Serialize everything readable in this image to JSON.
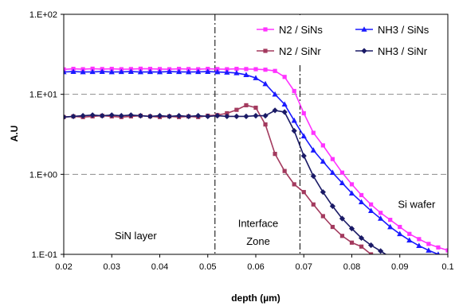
{
  "chart_data": {
    "type": "line",
    "title": "",
    "xlabel": "depth (µm)",
    "ylabel": "A.U",
    "yscale": "log",
    "xlim": [
      0.02,
      0.1
    ],
    "ylim": [
      0.1,
      100
    ],
    "x_ticks": [
      0.02,
      0.03,
      0.04,
      0.05,
      0.06,
      0.07,
      0.08,
      0.09,
      0.1
    ],
    "x_tick_labels": [
      "0.02",
      "0.03",
      "0.04",
      "0.05",
      "0.06",
      "0.07",
      "0.08",
      "0.09",
      "0.1"
    ],
    "y_ticks": [
      0.1,
      1,
      10,
      100
    ],
    "y_tick_labels": [
      "1.E-01",
      "1.E+00",
      "1.E+01",
      "1.E+02"
    ],
    "grid": "horizontal dashed",
    "legend_position": "top-right",
    "vlines": [
      0.0515,
      0.0692
    ],
    "annotations": [
      {
        "text": "SiN layer",
        "x": 0.035,
        "y": 0.17
      },
      {
        "text": "Interface",
        "x": 0.0605,
        "y": 0.24
      },
      {
        "text": "Zone",
        "x": 0.0605,
        "y": 0.145
      },
      {
        "text": "Si wafer",
        "x": 0.0935,
        "y": 0.42
      }
    ],
    "series": [
      {
        "name": "N2 / SiNs",
        "color": "#ff33ff",
        "marker": "square",
        "x": [
          0.02,
          0.022,
          0.024,
          0.026,
          0.028,
          0.03,
          0.032,
          0.034,
          0.036,
          0.038,
          0.04,
          0.042,
          0.044,
          0.046,
          0.048,
          0.05,
          0.052,
          0.054,
          0.056,
          0.058,
          0.06,
          0.062,
          0.064,
          0.066,
          0.068,
          0.07,
          0.072,
          0.074,
          0.076,
          0.078,
          0.08,
          0.082,
          0.084,
          0.086,
          0.088,
          0.09,
          0.092,
          0.094,
          0.096,
          0.098,
          0.1
        ],
        "y": [
          20.5,
          20.8,
          20.6,
          20.9,
          20.7,
          20.8,
          20.6,
          20.7,
          20.9,
          20.8,
          20.7,
          20.6,
          20.8,
          20.7,
          20.6,
          20.8,
          20.7,
          20.6,
          20.8,
          20.7,
          20.6,
          20.3,
          19.6,
          16.5,
          11.0,
          5.8,
          3.3,
          2.3,
          1.55,
          1.05,
          0.75,
          0.55,
          0.42,
          0.33,
          0.27,
          0.22,
          0.18,
          0.155,
          0.135,
          0.122,
          0.112
        ]
      },
      {
        "name": "NH3 / SiNs",
        "color": "#1a1aff",
        "marker": "triangle",
        "x": [
          0.02,
          0.022,
          0.024,
          0.026,
          0.028,
          0.03,
          0.032,
          0.034,
          0.036,
          0.038,
          0.04,
          0.042,
          0.044,
          0.046,
          0.048,
          0.05,
          0.052,
          0.054,
          0.056,
          0.058,
          0.06,
          0.062,
          0.064,
          0.066,
          0.068,
          0.07,
          0.072,
          0.074,
          0.076,
          0.078,
          0.08,
          0.082,
          0.084,
          0.086,
          0.088,
          0.09,
          0.092,
          0.094,
          0.096,
          0.098,
          0.1
        ],
        "y": [
          19.0,
          19.2,
          19.0,
          19.1,
          19.2,
          19.0,
          19.1,
          19.2,
          19.0,
          19.1,
          19.0,
          19.2,
          19.1,
          19.0,
          19.1,
          19.2,
          19.0,
          18.8,
          18.5,
          17.5,
          16.0,
          13.5,
          10.0,
          7.5,
          4.7,
          3.0,
          2.0,
          1.45,
          1.05,
          0.78,
          0.58,
          0.45,
          0.35,
          0.28,
          0.22,
          0.18,
          0.15,
          0.128,
          0.112,
          0.1,
          0.093
        ]
      },
      {
        "name": "N2 / SiNr",
        "color": "#a33a5e",
        "marker": "square",
        "x": [
          0.02,
          0.022,
          0.024,
          0.026,
          0.028,
          0.03,
          0.032,
          0.034,
          0.036,
          0.038,
          0.04,
          0.042,
          0.044,
          0.046,
          0.048,
          0.05,
          0.052,
          0.054,
          0.056,
          0.058,
          0.06,
          0.062,
          0.064,
          0.066,
          0.068,
          0.07,
          0.072,
          0.074,
          0.076,
          0.078,
          0.08,
          0.082,
          0.084
        ],
        "y": [
          5.2,
          5.3,
          5.2,
          5.3,
          5.4,
          5.3,
          5.2,
          5.3,
          5.4,
          5.3,
          5.2,
          5.3,
          5.2,
          5.3,
          5.2,
          5.4,
          5.5,
          5.8,
          6.4,
          7.3,
          6.8,
          4.2,
          1.8,
          1.1,
          0.75,
          0.6,
          0.42,
          0.3,
          0.22,
          0.17,
          0.14,
          0.125,
          0.1
        ]
      },
      {
        "name": "NH3 / SiNr",
        "color": "#1a1a66",
        "marker": "diamond",
        "x": [
          0.02,
          0.022,
          0.024,
          0.026,
          0.028,
          0.03,
          0.032,
          0.034,
          0.036,
          0.038,
          0.04,
          0.042,
          0.044,
          0.046,
          0.048,
          0.05,
          0.052,
          0.054,
          0.056,
          0.058,
          0.06,
          0.062,
          0.064,
          0.066,
          0.068,
          0.07,
          0.072,
          0.074,
          0.076,
          0.078,
          0.08,
          0.082,
          0.084,
          0.086,
          0.088
        ],
        "y": [
          5.2,
          5.3,
          5.4,
          5.5,
          5.4,
          5.5,
          5.4,
          5.5,
          5.4,
          5.3,
          5.4,
          5.3,
          5.4,
          5.3,
          5.4,
          5.3,
          5.4,
          5.3,
          5.3,
          5.3,
          5.4,
          5.4,
          6.3,
          6.0,
          3.5,
          1.7,
          0.95,
          0.6,
          0.4,
          0.28,
          0.21,
          0.16,
          0.13,
          0.11,
          0.092
        ]
      }
    ]
  }
}
